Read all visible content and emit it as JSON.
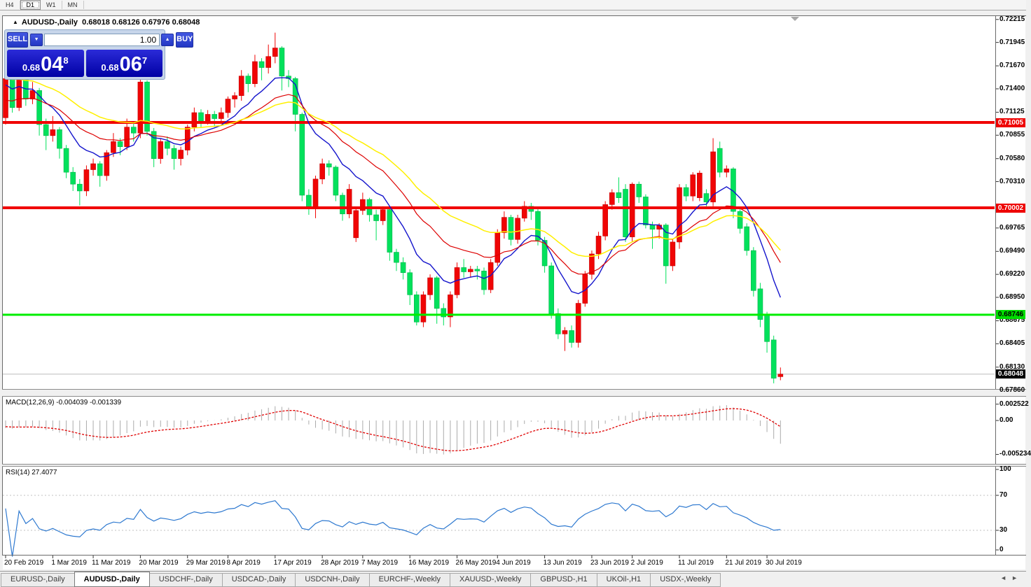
{
  "toolbar": {
    "timeframes": [
      {
        "label": "H4",
        "active": false
      },
      {
        "label": "D1",
        "active": true
      },
      {
        "label": "W1",
        "active": false
      },
      {
        "label": "MN",
        "active": false
      }
    ]
  },
  "header": {
    "collapse_arrow": "▲",
    "title": "AUDUSD-,Daily",
    "ohlc_text": "0.68018 0.68126 0.67976 0.68048"
  },
  "trade_panel": {
    "sell_label": "SELL",
    "buy_label": "BUY",
    "volume": "1.00",
    "spin_down": "▼",
    "spin_up": "▲",
    "sell_small": "0.68",
    "sell_big": "04",
    "sell_sup": "8",
    "buy_small": "0.68",
    "buy_big": "06",
    "buy_sup": "7"
  },
  "chart_data": {
    "type": "candlestick",
    "symbol": "AUDUSD-",
    "timeframe": "Daily",
    "bull_color": "#F00505",
    "bear_color": "#02E15C",
    "bars": [
      [
        0.7106,
        0.716,
        0.7098,
        0.7152
      ],
      [
        0.7152,
        0.7156,
        0.7112,
        0.7118
      ],
      [
        0.7118,
        0.7168,
        0.7114,
        0.7155
      ],
      [
        0.7155,
        0.7158,
        0.712,
        0.7128
      ],
      [
        0.7128,
        0.7148,
        0.7122,
        0.7138
      ],
      [
        0.7138,
        0.7141,
        0.7085,
        0.7098
      ],
      [
        0.7098,
        0.7105,
        0.7068,
        0.7085
      ],
      [
        0.7085,
        0.7108,
        0.7078,
        0.7092
      ],
      [
        0.7092,
        0.7095,
        0.7058,
        0.707
      ],
      [
        0.707,
        0.7074,
        0.7035,
        0.7042
      ],
      [
        0.7042,
        0.7048,
        0.702,
        0.7028
      ],
      [
        0.7028,
        0.7034,
        0.7003,
        0.702
      ],
      [
        0.702,
        0.705,
        0.7014,
        0.7045
      ],
      [
        0.7045,
        0.7058,
        0.7038,
        0.7052
      ],
      [
        0.7052,
        0.7055,
        0.7025,
        0.7038
      ],
      [
        0.7038,
        0.7068,
        0.7032,
        0.7065
      ],
      [
        0.7065,
        0.7088,
        0.706,
        0.7078
      ],
      [
        0.7078,
        0.7082,
        0.7062,
        0.7072
      ],
      [
        0.7072,
        0.7105,
        0.7068,
        0.7095
      ],
      [
        0.7095,
        0.71,
        0.7078,
        0.7088
      ],
      [
        0.7088,
        0.7168,
        0.7082,
        0.7148
      ],
      [
        0.7148,
        0.715,
        0.7085,
        0.709
      ],
      [
        0.709,
        0.7094,
        0.7048,
        0.7058
      ],
      [
        0.7058,
        0.7082,
        0.7052,
        0.7078
      ],
      [
        0.7078,
        0.7084,
        0.7062,
        0.707
      ],
      [
        0.707,
        0.7074,
        0.7045,
        0.7058
      ],
      [
        0.7058,
        0.7072,
        0.705,
        0.7068
      ],
      [
        0.7068,
        0.7098,
        0.7062,
        0.7095
      ],
      [
        0.7095,
        0.7118,
        0.709,
        0.7112
      ],
      [
        0.7112,
        0.7116,
        0.7095,
        0.7102
      ],
      [
        0.7102,
        0.7115,
        0.7098,
        0.711
      ],
      [
        0.711,
        0.7114,
        0.7095,
        0.7105
      ],
      [
        0.7105,
        0.7118,
        0.71,
        0.7112
      ],
      [
        0.7112,
        0.7131,
        0.7106,
        0.7128
      ],
      [
        0.7128,
        0.7136,
        0.7118,
        0.7132
      ],
      [
        0.7132,
        0.7162,
        0.7126,
        0.7155
      ],
      [
        0.7155,
        0.7158,
        0.7136,
        0.7146
      ],
      [
        0.7146,
        0.718,
        0.7142,
        0.7172
      ],
      [
        0.7172,
        0.7176,
        0.715,
        0.7165
      ],
      [
        0.7165,
        0.7192,
        0.7158,
        0.7178
      ],
      [
        0.7178,
        0.7206,
        0.717,
        0.7188
      ],
      [
        0.7188,
        0.719,
        0.7138,
        0.7155
      ],
      [
        0.7155,
        0.7162,
        0.7142,
        0.7152
      ],
      [
        0.7152,
        0.7154,
        0.709,
        0.711
      ],
      [
        0.711,
        0.7112,
        0.7008,
        0.7015
      ],
      [
        0.7015,
        0.7022,
        0.6992,
        0.7
      ],
      [
        0.7,
        0.7038,
        0.6988,
        0.7034
      ],
      [
        0.7034,
        0.7058,
        0.7028,
        0.7052
      ],
      [
        0.7052,
        0.7056,
        0.7038,
        0.7048
      ],
      [
        0.7048,
        0.705,
        0.7008,
        0.7015
      ],
      [
        0.7015,
        0.7018,
        0.6985,
        0.6993
      ],
      [
        0.6993,
        0.7028,
        0.6988,
        0.7022
      ],
      [
        0.6965,
        0.7,
        0.696,
        0.6997
      ],
      [
        0.6997,
        0.7018,
        0.6992,
        0.701
      ],
      [
        0.701,
        0.7012,
        0.6984,
        0.6992
      ],
      [
        0.6992,
        0.6998,
        0.6962,
        0.6985
      ],
      [
        0.6985,
        0.7002,
        0.698,
        0.6998
      ],
      [
        0.6998,
        0.7,
        0.6938,
        0.6948
      ],
      [
        0.6948,
        0.6952,
        0.6926,
        0.6936
      ],
      [
        0.6936,
        0.6942,
        0.6916,
        0.6924
      ],
      [
        0.6924,
        0.6928,
        0.6886,
        0.6898
      ],
      [
        0.6898,
        0.6902,
        0.6862,
        0.6866
      ],
      [
        0.6866,
        0.6902,
        0.686,
        0.6898
      ],
      [
        0.6898,
        0.6922,
        0.6892,
        0.6918
      ],
      [
        0.6918,
        0.692,
        0.6864,
        0.6882
      ],
      [
        0.6882,
        0.6888,
        0.6862,
        0.6872
      ],
      [
        0.6872,
        0.6902,
        0.686,
        0.6898
      ],
      [
        0.6898,
        0.6936,
        0.6894,
        0.693
      ],
      [
        0.693,
        0.694,
        0.6918,
        0.6925
      ],
      [
        0.6925,
        0.6932,
        0.6918,
        0.6928
      ],
      [
        0.6928,
        0.6932,
        0.6916,
        0.6926
      ],
      [
        0.6926,
        0.693,
        0.6898,
        0.6904
      ],
      [
        0.6904,
        0.694,
        0.69,
        0.6936
      ],
      [
        0.6936,
        0.6975,
        0.6932,
        0.6971
      ],
      [
        0.6971,
        0.6996,
        0.6964,
        0.6989
      ],
      [
        0.6989,
        0.6992,
        0.6956,
        0.6963
      ],
      [
        0.6963,
        0.6992,
        0.6958,
        0.6988
      ],
      [
        0.6988,
        0.7008,
        0.6984,
        0.7002
      ],
      [
        0.7002,
        0.7006,
        0.6986,
        0.6996
      ],
      [
        0.6996,
        0.6999,
        0.6956,
        0.6962
      ],
      [
        0.6962,
        0.6966,
        0.6924,
        0.6932
      ],
      [
        0.6932,
        0.6936,
        0.687,
        0.6876
      ],
      [
        0.6876,
        0.6882,
        0.6846,
        0.6852
      ],
      [
        0.6852,
        0.686,
        0.6832,
        0.6856
      ],
      [
        0.6856,
        0.6862,
        0.6836,
        0.6842
      ],
      [
        0.6842,
        0.6892,
        0.6836,
        0.6888
      ],
      [
        0.6888,
        0.6926,
        0.6884,
        0.6922
      ],
      [
        0.6922,
        0.695,
        0.6916,
        0.6946
      ],
      [
        0.6946,
        0.6972,
        0.694,
        0.6967
      ],
      [
        0.6967,
        0.7008,
        0.6962,
        0.7004
      ],
      [
        0.7004,
        0.7022,
        0.6998,
        0.7018
      ],
      [
        0.7018,
        0.7036,
        0.7006,
        0.7012
      ],
      [
        0.7022,
        0.7028,
        0.696,
        0.6966
      ],
      [
        0.6966,
        0.703,
        0.696,
        0.7028
      ],
      [
        0.7028,
        0.7031,
        0.7006,
        0.7013
      ],
      [
        0.7013,
        0.7016,
        0.6976,
        0.698
      ],
      [
        0.698,
        0.6984,
        0.6952,
        0.6975
      ],
      [
        0.6975,
        0.6982,
        0.6964,
        0.698
      ],
      [
        0.698,
        0.6982,
        0.6911,
        0.6932
      ],
      [
        0.6932,
        0.6964,
        0.6926,
        0.696
      ],
      [
        0.696,
        0.7028,
        0.6952,
        0.7024
      ],
      [
        0.7024,
        0.7028,
        0.7008,
        0.7014
      ],
      [
        0.7014,
        0.7042,
        0.7008,
        0.7039
      ],
      [
        0.7012,
        0.7044,
        0.7008,
        0.7041
      ],
      [
        0.7017,
        0.7022,
        0.7002,
        0.7007
      ],
      [
        0.7007,
        0.7082,
        0.7002,
        0.7066
      ],
      [
        0.707,
        0.7078,
        0.7036,
        0.7042
      ],
      [
        0.7042,
        0.705,
        0.7036,
        0.7046
      ],
      [
        0.7046,
        0.7048,
        0.6988,
        0.6996
      ],
      [
        0.6996,
        0.6999,
        0.697,
        0.6976
      ],
      [
        0.6978,
        0.6982,
        0.6944,
        0.695
      ],
      [
        0.695,
        0.6954,
        0.6896,
        0.6903
      ],
      [
        0.6905,
        0.6912,
        0.686,
        0.6869
      ],
      [
        0.6874,
        0.6878,
        0.683,
        0.6843
      ],
      [
        0.6845,
        0.685,
        0.6794,
        0.68
      ],
      [
        0.68018,
        0.68126,
        0.67976,
        0.68048
      ]
    ],
    "x_tick_bars": [
      0,
      7,
      13,
      20,
      27,
      33,
      40,
      47,
      53,
      60,
      67,
      73,
      80,
      87,
      93,
      100,
      107,
      113
    ],
    "x_tick_labels": [
      "20 Feb 2019",
      "1 Mar 2019",
      "11 Mar 2019",
      "20 Mar 2019",
      "29 Mar 2019",
      "8 Apr 2019",
      "17 Apr 2019",
      "28 Apr 2019",
      "7 May 2019",
      "16 May 2019",
      "26 May 2019",
      "4 Jun 2019",
      "13 Jun 2019",
      "23 Jun 2019",
      "2 Jul 2019",
      "11 Jul 2019",
      "21 Jul 2019",
      "30 Jul 2019"
    ],
    "y_axis_labels": [
      "0.72215",
      "0.71945",
      "0.71670",
      "0.71400",
      "0.71125",
      "0.70855",
      "0.70580",
      "0.70310",
      "0.69765",
      "0.69490",
      "0.69220",
      "0.68950",
      "0.68675",
      "0.68405",
      "0.68130",
      "0.67860"
    ],
    "price_badges": [
      {
        "text": "0.71005",
        "bg": "#EE0000",
        "fg": "#FFFFFF",
        "price": 0.71005
      },
      {
        "text": "0.70002",
        "bg": "#EE0000",
        "fg": "#FFFFFF",
        "price": 0.70002
      },
      {
        "text": "0.68746",
        "bg": "#00DD00",
        "fg": "#000000",
        "price": 0.68746
      },
      {
        "text": "0.68048",
        "bg": "#000000",
        "fg": "#FFFFFF",
        "price": 0.68048
      }
    ],
    "levels": [
      {
        "price": 0.71005,
        "color": "#F00000",
        "width": 4
      },
      {
        "price": 0.70002,
        "color": "#F00000",
        "width": 4
      },
      {
        "price": 0.68746,
        "color": "#00EE00",
        "width": 3
      }
    ],
    "current_price": {
      "price": 0.68048,
      "color": "#BBBBBB"
    },
    "moving_averages": [
      {
        "period": 10,
        "color": "#1515CC",
        "width": 1.4,
        "seed": 0.7143
      },
      {
        "period": 21,
        "color": "#DD0000",
        "width": 1.2,
        "seed": 0.7124
      },
      {
        "period": 34,
        "color": "#FFF000",
        "width": 1.5,
        "seed": 0.7153
      }
    ],
    "indicators": {
      "macd": {
        "label": "MACD(12,26,9)",
        "current_values": "-0.004039 -0.001339",
        "fast": 12,
        "slow": 26,
        "signal": 9,
        "axis_labels": [
          "0.002522",
          "0.00",
          "-0.005234"
        ],
        "hist_color": "#ABABAB",
        "signal_color": "#E00000",
        "seeds": {
          "fast": 0.7137,
          "slow": 0.7151,
          "signal": -0.0009
        }
      },
      "rsi": {
        "label": "RSI(14)",
        "current_value": "27.4077",
        "period": 14,
        "axis_labels": [
          "100",
          "70",
          "30",
          "0"
        ],
        "levels": [
          70,
          30
        ],
        "color": "#2E79D0"
      }
    }
  },
  "tabs": {
    "items": [
      {
        "label": "EURUSD-,Daily",
        "active": false
      },
      {
        "label": "AUDUSD-,Daily",
        "active": true
      },
      {
        "label": "USDCHF-,Daily",
        "active": false
      },
      {
        "label": "USDCAD-,Daily",
        "active": false
      },
      {
        "label": "USDCNH-,Daily",
        "active": false
      },
      {
        "label": "EURCHF-,Weekly",
        "active": false
      },
      {
        "label": "XAUUSD-,Weekly",
        "active": false
      },
      {
        "label": "GBPUSD-,H1",
        "active": false
      },
      {
        "label": "UKOil-,H1",
        "active": false
      },
      {
        "label": "USDX-,Weekly",
        "active": false
      }
    ],
    "scroll_left": "◄",
    "scroll_right": "►"
  }
}
